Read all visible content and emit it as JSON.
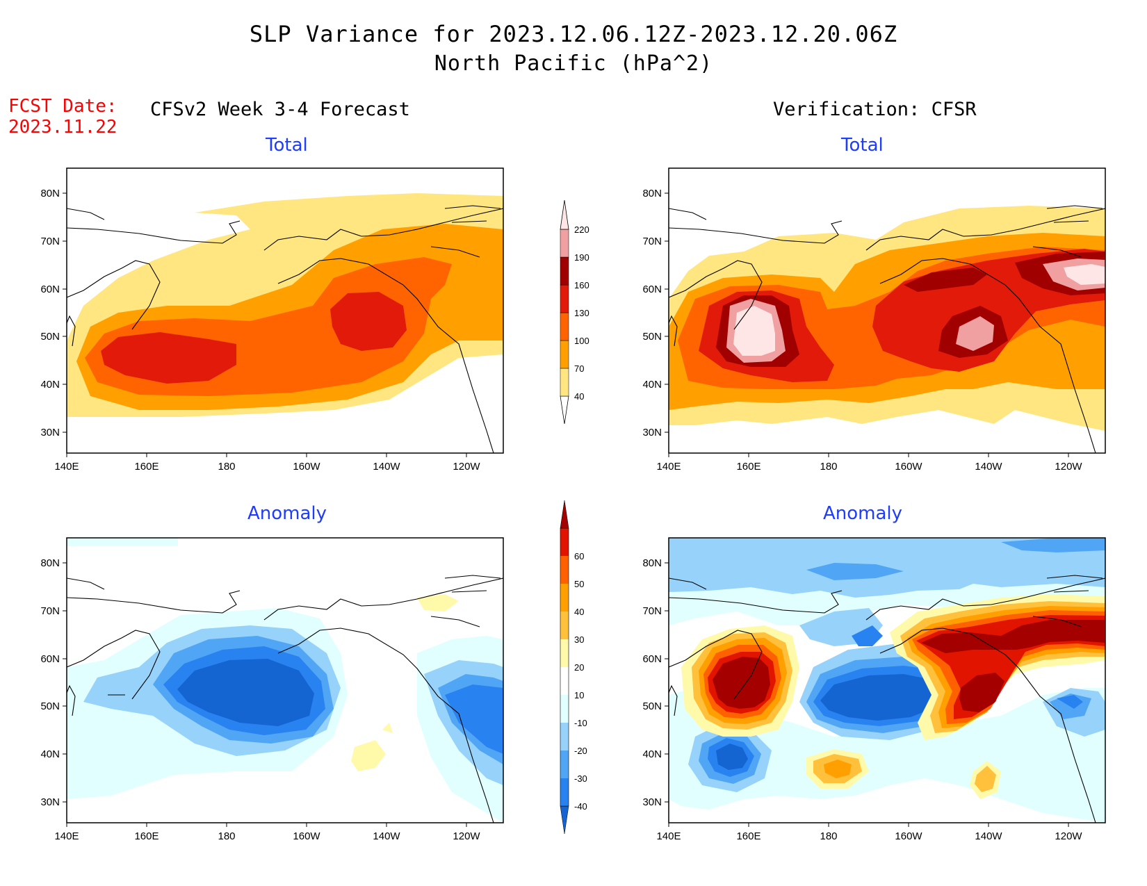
{
  "header": {
    "title": "SLP Variance for 2023.12.06.12Z-2023.12.20.06Z",
    "subtitle": "North Pacific (hPa^2)",
    "fcst_label": "FCST Date:",
    "fcst_date": "2023.11.22"
  },
  "columns": {
    "left": "CFSv2 Week 3-4 Forecast",
    "right": "Verification: CFSR"
  },
  "panels": {
    "forecast_total": "Total",
    "verification_total": "Total",
    "forecast_anomaly": "Anomaly",
    "verification_anomaly": "Anomaly"
  },
  "axes": {
    "lat_labels": [
      "80N",
      "70N",
      "60N",
      "50N",
      "40N",
      "30N"
    ],
    "lon_labels": [
      "140E",
      "160E",
      "180",
      "160W",
      "140W",
      "120W"
    ]
  },
  "colorbars": {
    "total": {
      "levels": [
        "40",
        "70",
        "100",
        "130",
        "160",
        "190",
        "220"
      ],
      "colors": [
        "#ffe680",
        "#ffa000",
        "#ff6400",
        "#e11a0a",
        "#a00000",
        "#f0a0a0",
        "#ffe6e6",
        "#fff8f8"
      ]
    },
    "anomaly": {
      "levels": [
        "-40",
        "-30",
        "-20",
        "-10",
        "10",
        "20",
        "30",
        "40",
        "50",
        "60"
      ],
      "colors": [
        "#1464d2",
        "#2882f0",
        "#50a5f5",
        "#96d2fa",
        "#e1ffff",
        "#ffffff",
        "#fffaaa",
        "#ffc03c",
        "#ffa000",
        "#ff6000",
        "#e11400",
        "#a50000"
      ]
    }
  },
  "colors": {
    "title_red": "#ff0000",
    "panel_title_blue": "#1e3cff"
  }
}
